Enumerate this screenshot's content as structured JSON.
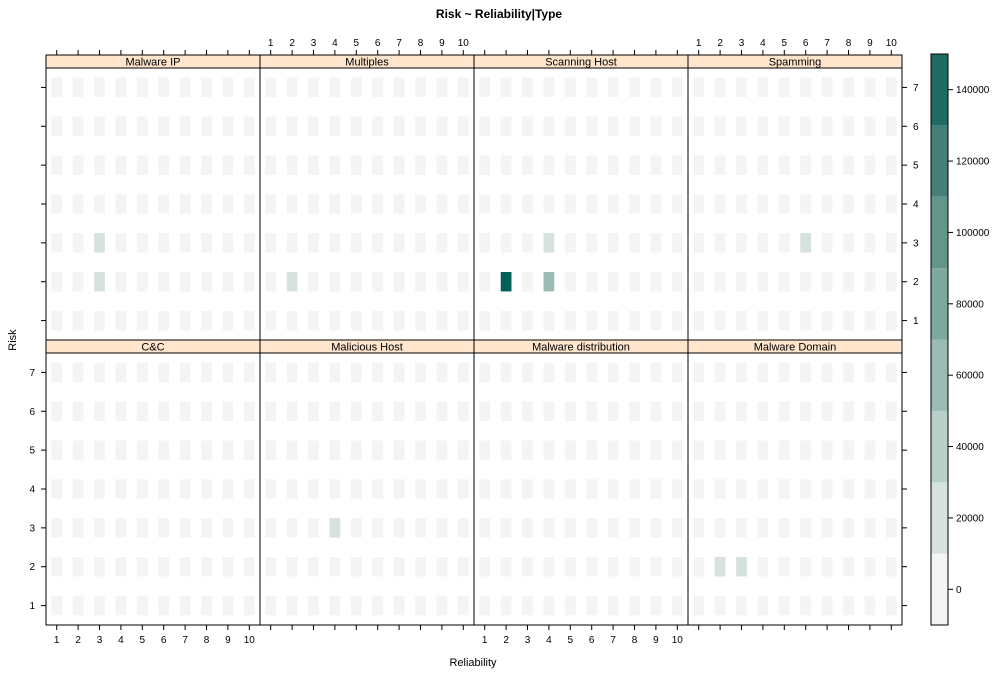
{
  "chart_data": {
    "type": "heatmap",
    "title": "Risk ~ Reliability|Type",
    "xlabel": "Reliability",
    "ylabel": "Risk",
    "x_ticks": [
      "1",
      "2",
      "3",
      "4",
      "5",
      "6",
      "7",
      "8",
      "9",
      "10"
    ],
    "y_ticks": [
      "1",
      "2",
      "3",
      "4",
      "5",
      "6",
      "7"
    ],
    "strip_color": "#FFE5CC",
    "colorkey": {
      "ticks": [
        "0",
        "20000",
        "40000",
        "60000",
        "80000",
        "100000",
        "120000",
        "140000"
      ],
      "breaks": [
        -10000,
        10000,
        30000,
        50000,
        70000,
        90000,
        110000,
        130000,
        150000
      ],
      "colors": [
        "#F2F5F4",
        "#D5E2DF",
        "#B8CFCA",
        "#9BBCB5",
        "#7FA9A0",
        "#62968B",
        "#457F76",
        "#1F6B62",
        "#005F57"
      ]
    },
    "panels": [
      {
        "name": "Malware IP",
        "cells": [
          {
            "x": 3,
            "y": 3,
            "value": 12000
          },
          {
            "x": 4,
            "y": 3,
            "value": 7000
          },
          {
            "x": 6,
            "y": 3,
            "value": 9000
          },
          {
            "x": 3,
            "y": 2,
            "value": 13000
          },
          {
            "x": 5,
            "y": 2,
            "value": 1500
          },
          {
            "x": 6,
            "y": 2,
            "value": 1500
          }
        ]
      },
      {
        "name": "Multiples",
        "cells": [
          {
            "x": 2,
            "y": 2,
            "value": 10000
          }
        ]
      },
      {
        "name": "Scanning Host",
        "cells": [
          {
            "x": 1,
            "y": 5,
            "value": 9000
          },
          {
            "x": 4,
            "y": 5,
            "value": 8000
          },
          {
            "x": 1,
            "y": 4,
            "value": 8000
          },
          {
            "x": 4,
            "y": 4,
            "value": 9000
          },
          {
            "x": 1,
            "y": 3,
            "value": 6000
          },
          {
            "x": 4,
            "y": 3,
            "value": 28000
          },
          {
            "x": 2,
            "y": 2,
            "value": 150000
          },
          {
            "x": 4,
            "y": 2,
            "value": 50000
          },
          {
            "x": 6,
            "y": 2,
            "value": 7000
          }
        ]
      },
      {
        "name": "Spamming",
        "cells": [
          {
            "x": 6,
            "y": 3,
            "value": 11000
          },
          {
            "x": 4,
            "y": 2,
            "value": 9000
          },
          {
            "x": 6,
            "y": 2,
            "value": 9000
          }
        ]
      },
      {
        "name": "C&C",
        "cells": [
          {
            "x": 3,
            "y": 4,
            "value": 9000
          }
        ]
      },
      {
        "name": "Malicious Host",
        "cells": [
          {
            "x": 4,
            "y": 4,
            "value": 9000
          },
          {
            "x": 3,
            "y": 3,
            "value": 9000
          },
          {
            "x": 4,
            "y": 3,
            "value": 12000
          },
          {
            "x": 3,
            "y": 2,
            "value": 9000
          }
        ]
      },
      {
        "name": "Malware distribution",
        "cells": []
      },
      {
        "name": "Malware Domain",
        "cells": [
          {
            "x": 6,
            "y": 3,
            "value": 9000
          },
          {
            "x": 2,
            "y": 2,
            "value": 11000
          },
          {
            "x": 3,
            "y": 2,
            "value": 10000
          },
          {
            "x": 6,
            "y": 2,
            "value": 9000
          }
        ]
      }
    ]
  }
}
